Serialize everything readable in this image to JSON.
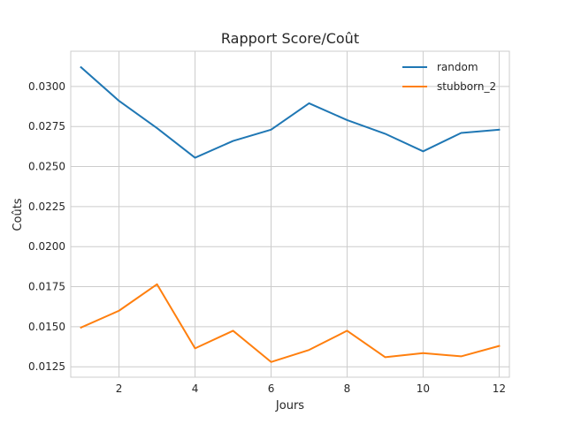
{
  "chart_data": {
    "type": "line",
    "title": "Rapport Score/Coût",
    "xlabel": "Jours",
    "ylabel": "Coûts",
    "xlim": [
      0.73,
      12.27
    ],
    "ylim": [
      0.01185,
      0.0322
    ],
    "xticks": [
      2,
      4,
      6,
      8,
      10,
      12
    ],
    "xtick_labels": [
      "2",
      "4",
      "6",
      "8",
      "10",
      "12"
    ],
    "yticks": [
      0.0125,
      0.015,
      0.0175,
      0.02,
      0.0225,
      0.025,
      0.0275,
      0.03
    ],
    "ytick_labels": [
      "0.0125",
      "0.0150",
      "0.0175",
      "0.0200",
      "0.0225",
      "0.0250",
      "0.0275",
      "0.0300"
    ],
    "grid": true,
    "legend_position": "top-right",
    "x": [
      1,
      2,
      3,
      4,
      5,
      6,
      7,
      8,
      9,
      10,
      11,
      12
    ],
    "series": [
      {
        "name": "random",
        "color": "#1f77b4",
        "values": [
          0.0312,
          0.0291,
          0.0274,
          0.02555,
          0.0266,
          0.0273,
          0.02895,
          0.0279,
          0.02705,
          0.02595,
          0.0271,
          0.0273
        ]
      },
      {
        "name": "stubborn_2",
        "color": "#ff7f0e",
        "values": [
          0.01495,
          0.016,
          0.01765,
          0.01365,
          0.01475,
          0.0128,
          0.01355,
          0.01475,
          0.0131,
          0.01335,
          0.01315,
          0.0138
        ]
      }
    ]
  }
}
